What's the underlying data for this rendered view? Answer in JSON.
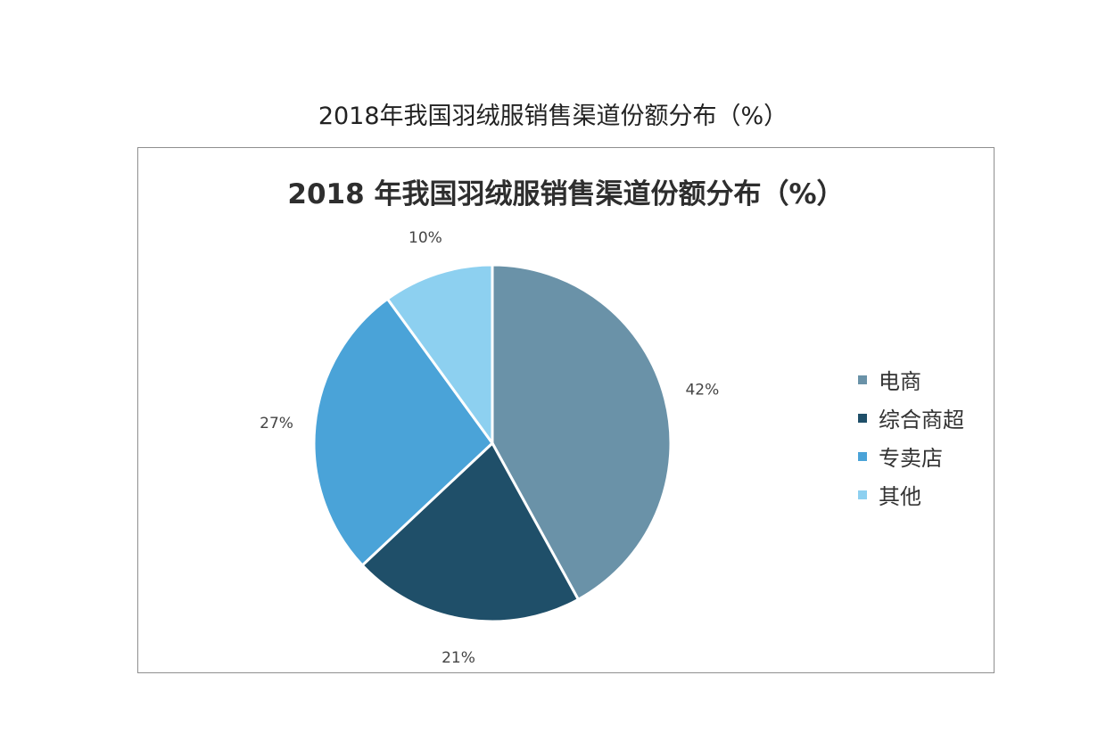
{
  "caption": "2018年我国羽绒服销售渠道份额分布（%）",
  "chart_data": {
    "type": "pie",
    "title": "2018 年我国羽绒服销售渠道份额分布（%）",
    "categories": [
      "电商",
      "综合商超",
      "专卖店",
      "其他"
    ],
    "values": [
      42,
      21,
      27,
      10
    ],
    "labels": [
      "42%",
      "21%",
      "27%",
      "10%"
    ],
    "colors": [
      "#6A92A8",
      "#1F4F69",
      "#4AA3D8",
      "#8DD0F0"
    ],
    "legend_position": "right"
  }
}
